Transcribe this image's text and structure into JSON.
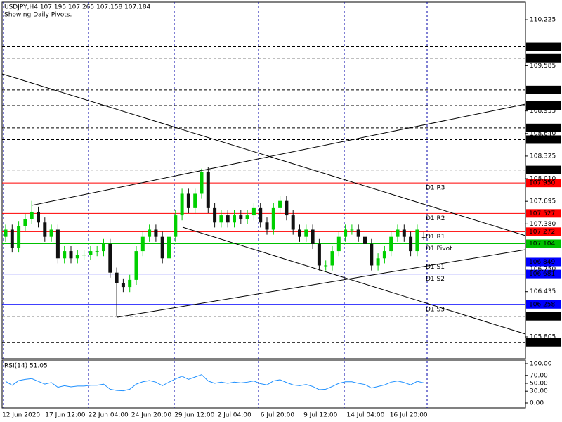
{
  "chart_data": {
    "type": "candlestick",
    "title": "USDJPY,H4  107.195 107.265 107.158 107.184",
    "subtitle": "Showing Daily Pivots.",
    "x_labels": [
      "12 Jun 2020",
      "17 Jun 12:00",
      "22 Jun 04:00",
      "24 Jun 20:00",
      "29 Jun 12:00",
      "2 Jul 04:00",
      "6 Jul 20:00",
      "9 Jul 12:00",
      "14 Jul 04:00",
      "16 Jul 20:00"
    ],
    "open": [
      107.2,
      107.3,
      107.05,
      107.35,
      107.45,
      107.55,
      107.4,
      107.2,
      107.3,
      106.9,
      107.0,
      106.9,
      106.95,
      106.95,
      107.0,
      107.0,
      107.1,
      106.7,
      106.55,
      106.5,
      106.6,
      107.0,
      107.2,
      107.3,
      107.2,
      106.9,
      107.2,
      107.5,
      107.8,
      107.6,
      107.8,
      108.1,
      107.6,
      107.4,
      107.5,
      107.4,
      107.5,
      107.45,
      107.5,
      107.6,
      107.4,
      107.3,
      107.6,
      107.7,
      107.5,
      107.3,
      107.2,
      107.3,
      107.1,
      106.8,
      106.8,
      107.0,
      107.2,
      107.3,
      107.3,
      107.2,
      107.1,
      106.8,
      106.9,
      107.0,
      107.2,
      107.3,
      107.2,
      107.0,
      107.195
    ],
    "high": [
      107.37,
      107.37,
      107.42,
      107.52,
      107.7,
      107.62,
      107.47,
      107.37,
      107.37,
      107.07,
      107.07,
      107.02,
      107.02,
      107.07,
      107.07,
      107.17,
      107.17,
      106.77,
      106.62,
      106.67,
      107.07,
      107.27,
      107.37,
      107.37,
      107.27,
      107.27,
      107.57,
      107.87,
      107.87,
      107.87,
      108.15,
      108.17,
      107.67,
      107.57,
      107.57,
      107.57,
      107.57,
      107.57,
      107.67,
      107.67,
      107.47,
      107.67,
      107.77,
      107.77,
      107.57,
      107.37,
      107.37,
      107.37,
      107.17,
      106.87,
      107.07,
      107.27,
      107.37,
      107.37,
      107.37,
      107.27,
      107.17,
      106.97,
      107.07,
      107.27,
      107.37,
      107.37,
      107.27,
      107.37,
      107.265
    ],
    "low": [
      107.13,
      106.98,
      106.98,
      107.28,
      107.38,
      107.33,
      107.13,
      107.13,
      106.83,
      106.83,
      106.83,
      106.83,
      106.88,
      106.88,
      106.93,
      106.93,
      106.63,
      106.1,
      106.43,
      106.43,
      106.53,
      106.93,
      107.13,
      107.13,
      106.83,
      106.83,
      107.13,
      107.43,
      107.53,
      107.53,
      107.73,
      107.53,
      107.33,
      107.33,
      107.33,
      107.33,
      107.38,
      107.38,
      107.43,
      107.33,
      107.23,
      107.23,
      107.53,
      107.43,
      107.23,
      107.13,
      107.13,
      107.03,
      106.73,
      106.73,
      106.73,
      106.93,
      107.13,
      107.23,
      107.13,
      107.03,
      106.73,
      106.73,
      106.83,
      106.93,
      107.13,
      107.13,
      106.93,
      106.93,
      107.158
    ],
    "close": [
      107.3,
      107.05,
      107.35,
      107.45,
      107.55,
      107.4,
      107.2,
      107.3,
      106.9,
      107.0,
      106.9,
      106.95,
      106.95,
      107.0,
      107.0,
      107.1,
      106.7,
      106.55,
      106.5,
      106.6,
      107.0,
      107.2,
      107.3,
      107.2,
      106.9,
      107.2,
      107.5,
      107.8,
      107.6,
      107.8,
      108.1,
      107.6,
      107.4,
      107.5,
      107.4,
      107.5,
      107.45,
      107.5,
      107.6,
      107.4,
      107.3,
      107.6,
      107.7,
      107.5,
      107.3,
      107.2,
      107.3,
      107.1,
      106.8,
      106.8,
      107.0,
      107.2,
      107.3,
      107.3,
      107.2,
      107.1,
      106.8,
      106.9,
      107.0,
      107.2,
      107.3,
      107.2,
      107.0,
      107.3,
      107.184
    ],
    "up_color": "#00d000",
    "down_color": "#101010",
    "ylim": [
      105.501,
      110.471
    ],
    "yticks": [
      110.225,
      109.585,
      108.955,
      {
        "value": 108.64,
        "label": "108.640"
      },
      108.325,
      {
        "value": 108.01,
        "label": "108.010"
      },
      107.695,
      {
        "value": 107.38,
        "label": "107.380"
      },
      {
        "value": 106.75,
        "label": "106.750"
      },
      106.435,
      105.805
    ],
    "levels": [
      {
        "value": 109.848,
        "color": "#000000",
        "dashed": true
      },
      {
        "value": 109.689,
        "color": "#000000",
        "dashed": true
      },
      {
        "value": 109.247,
        "color": "#000000",
        "dashed": true
      },
      {
        "value": 109.03,
        "label": "109.030",
        "color": "#000000",
        "dashed": true
      },
      {
        "value": 108.718,
        "color": "#000000",
        "dashed": true
      },
      {
        "value": 108.555,
        "color": "#000000",
        "dashed": true
      },
      {
        "value": 108.132,
        "color": "#000000",
        "dashed": true
      },
      {
        "name": "D1 R3",
        "value": 107.95,
        "label": "107.950",
        "color": "#ff0000",
        "dashed": false
      },
      {
        "name": "D1 R2",
        "value": 107.527,
        "color": "#ff0000",
        "dashed": false
      },
      {
        "name": "D1 R1",
        "value": 107.272,
        "color": "#ff0000",
        "dashed": false
      },
      {
        "name": "D1 Pivot",
        "value": 107.104,
        "color": "#00c000",
        "dashed": false
      },
      {
        "name": "D1 S1",
        "value": 106.849,
        "color": "#0000ff",
        "dashed": false
      },
      {
        "name": "D1 S2",
        "value": 106.681,
        "color": "#0000ff",
        "dashed": false
      },
      {
        "name": "D1 S3",
        "value": 106.258,
        "color": "#0000ff",
        "dashed": false
      },
      {
        "value": 106.092,
        "color": "#000000",
        "dashed": true
      },
      {
        "value": 105.729,
        "color": "#000000",
        "dashed": true
      }
    ],
    "rsi": {
      "title": "RSI(14) 51.05",
      "color": "#1e90ff",
      "values": [
        55,
        45,
        57,
        60,
        62,
        55,
        48,
        52,
        40,
        44,
        41,
        43,
        43,
        45,
        45,
        48,
        35,
        32,
        31,
        35,
        48,
        54,
        57,
        53,
        44,
        53,
        61,
        68,
        60,
        66,
        72,
        56,
        50,
        53,
        50,
        53,
        51,
        53,
        56,
        49,
        46,
        56,
        59,
        52,
        46,
        44,
        47,
        42,
        34,
        35,
        42,
        50,
        54,
        54,
        50,
        47,
        38,
        42,
        46,
        53,
        56,
        52,
        46,
        55,
        51.05
      ],
      "ylim": [
        -12.5,
        108.9
      ],
      "yticks": [
        {
          "value": 100,
          "label": "100.00"
        },
        {
          "value": 70,
          "label": "70.00"
        },
        {
          "value": 50,
          "label": "50.00"
        },
        {
          "value": 30,
          "label": "30.00"
        },
        {
          "value": 0,
          "label": "0.00"
        }
      ]
    }
  }
}
